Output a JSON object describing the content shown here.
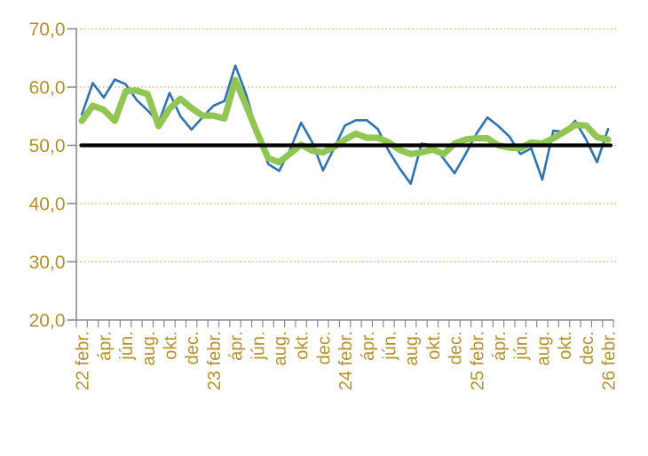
{
  "chart_data": {
    "type": "line",
    "title": "",
    "y_axis": {
      "min": 20,
      "max": 70,
      "tick_values": [
        70,
        60,
        50,
        40,
        30,
        20
      ],
      "tick_labels": [
        "70,0",
        "60,0",
        "50,0",
        "40,0",
        "30,0",
        "20,0"
      ],
      "gridline_values": [
        70,
        60,
        50,
        40,
        30
      ],
      "grid_style": "dotted"
    },
    "x_axis": {
      "point_count": 49,
      "minor_tick_every_point": true,
      "tick_labels": [
        {
          "i": 0,
          "label": "22 febr."
        },
        {
          "i": 2,
          "label": "ápr."
        },
        {
          "i": 4,
          "label": "jún."
        },
        {
          "i": 6,
          "label": "aug."
        },
        {
          "i": 8,
          "label": "okt."
        },
        {
          "i": 10,
          "label": "dec."
        },
        {
          "i": 12,
          "label": "23 febr."
        },
        {
          "i": 14,
          "label": "ápr."
        },
        {
          "i": 16,
          "label": "jún."
        },
        {
          "i": 18,
          "label": "aug."
        },
        {
          "i": 20,
          "label": "okt."
        },
        {
          "i": 22,
          "label": "dec."
        },
        {
          "i": 24,
          "label": "24 febr."
        },
        {
          "i": 26,
          "label": "ápr."
        },
        {
          "i": 28,
          "label": "jún."
        },
        {
          "i": 30,
          "label": "aug."
        },
        {
          "i": 32,
          "label": "okt."
        },
        {
          "i": 34,
          "label": "dec."
        },
        {
          "i": 36,
          "label": "25 febr."
        },
        {
          "i": 38,
          "label": "ápr."
        },
        {
          "i": 40,
          "label": "jún."
        },
        {
          "i": 42,
          "label": "aug."
        },
        {
          "i": 44,
          "label": "okt."
        },
        {
          "i": 46,
          "label": "dec."
        },
        {
          "i": 48,
          "label": "26 febr."
        }
      ]
    },
    "reference_line": {
      "value": 50,
      "color": "#000000",
      "stroke_width": 4.3
    },
    "series": [
      {
        "key": "series-blue-monthly",
        "color": "#2E74B5",
        "stroke_width": 2.6,
        "values": [
          55.3,
          60.7,
          58.2,
          61.3,
          60.5,
          57.8,
          56.0,
          53.9,
          59.0,
          55.0,
          52.7,
          54.8,
          56.8,
          57.6,
          63.7,
          58.7,
          52.1,
          46.8,
          45.6,
          49.3,
          53.9,
          50.6,
          45.7,
          49.5,
          53.4,
          54.3,
          54.3,
          52.8,
          49.0,
          46.0,
          43.4,
          50.3,
          50.0,
          47.7,
          45.2,
          48.5,
          52.0,
          54.8,
          53.3,
          51.5,
          48.5,
          49.5,
          44.1,
          52.5,
          52.3,
          54.2,
          51.0,
          47.1,
          52.8
        ]
      },
      {
        "key": "series-green-smoothed",
        "color": "#92C654",
        "stroke_width": 7.2,
        "values": [
          54.2,
          56.8,
          56.1,
          54.2,
          59.3,
          59.4,
          58.8,
          53.3,
          56.3,
          58.0,
          56.4,
          55.1,
          55.1,
          54.6,
          61.2,
          56.8,
          52.1,
          47.8,
          47.1,
          48.6,
          50.1,
          49.1,
          48.8,
          49.7,
          51.0,
          52.0,
          51.3,
          51.3,
          50.5,
          49.2,
          48.5,
          48.8,
          49.3,
          48.5,
          50.3,
          51.0,
          51.2,
          51.2,
          50.0,
          49.6,
          49.5,
          50.5,
          50.3,
          51.2,
          52.3,
          53.5,
          53.4,
          51.4,
          51.0
        ]
      }
    ],
    "colors": {
      "label": "#B5902C",
      "gridline": "#D9B257",
      "axis": "#8C8C8C",
      "background": "#FFFFFF"
    },
    "legend": "none"
  }
}
